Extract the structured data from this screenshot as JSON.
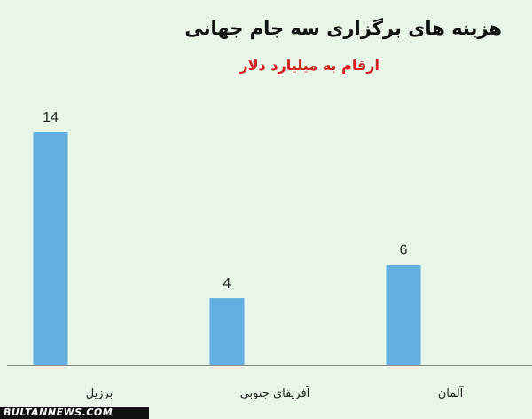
{
  "colors": {
    "bar": "#62b0e2",
    "subtitle": "#d02020",
    "axis": "#8a8a8a"
  },
  "chart_data": {
    "type": "bar",
    "title": "هزینه های برگزاری سه جام جهانی",
    "subtitle": "ارقام به میلیارد دلار",
    "categories": [
      "برزیل",
      "آفریقای جنوبی",
      "آلمان"
    ],
    "values": [
      14,
      4,
      6
    ],
    "data_labels": [
      "14",
      "4",
      "6"
    ],
    "ylim": [
      0,
      16
    ],
    "grid": false,
    "legend": "none"
  },
  "watermark": {
    "text": "BULTANNEWS.COM"
  }
}
